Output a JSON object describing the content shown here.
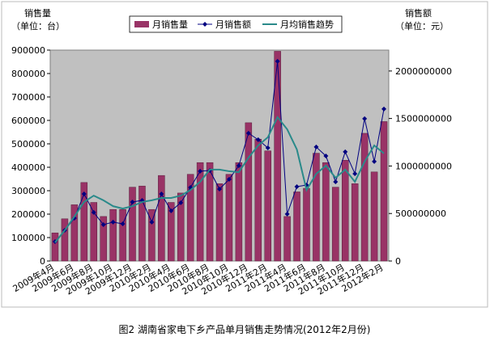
{
  "chart_data": {
    "type": "bar_line",
    "title_left": "销售量",
    "unit_left": "（单位：台）",
    "title_right": "销售额",
    "unit_right": "（单位：元）",
    "caption": "图2 湖南省家电下乡产品单月销售走势情况(2012年2月份)",
    "categories": [
      "2009年4月",
      null,
      "2009年6月",
      null,
      "2009年8月",
      null,
      "2009年10月",
      null,
      "2009年12月",
      null,
      "2010年2月",
      null,
      "2010年4月",
      null,
      "2010年6月",
      null,
      "2010年8月",
      null,
      "2010年10月",
      null,
      "2010年12月",
      null,
      "2011年2月",
      null,
      "2011年4月",
      null,
      "2011年6月",
      null,
      "2011年8月",
      null,
      "2011年10月",
      null,
      "2011年12月",
      null,
      "2012年2月"
    ],
    "series": [
      {
        "name": "月销售量",
        "kind": "bar",
        "color": "#993366",
        "values": [
          120000,
          180000,
          240000,
          335000,
          250000,
          190000,
          220000,
          220000,
          315000,
          320000,
          220000,
          365000,
          250000,
          290000,
          370000,
          420000,
          420000,
          330000,
          370000,
          420000,
          590000,
          520000,
          470000,
          895000,
          190000,
          295000,
          310000,
          460000,
          420000,
          315000,
          430000,
          330000,
          545000,
          380000,
          595000
        ]
      },
      {
        "name": "月销售额",
        "kind": "line",
        "axis": "y2",
        "color": "#000080",
        "values": [
          204000000,
          323000000,
          451000000,
          706000000,
          511000000,
          383000000,
          409000000,
          391000000,
          621000000,
          638000000,
          409000000,
          706000000,
          528000000,
          613000000,
          774000000,
          945000000,
          953000000,
          757000000,
          860000000,
          1004000000,
          1345000000,
          1277000000,
          1191000000,
          2102000000,
          494000000,
          783000000,
          800000000,
          1200000000,
          1106000000,
          834000000,
          1149000000,
          919000000,
          1498000000,
          1047000000,
          1600000000
        ]
      },
      {
        "name": "月均销售趋势",
        "kind": "line",
        "color": "#2a8a8a",
        "values": [
          79000,
          131000,
          190000,
          252000,
          279000,
          259000,
          234000,
          224000,
          234000,
          252000,
          259000,
          269000,
          269000,
          279000,
          303000,
          338000,
          390000,
          390000,
          383000,
          379000,
          441000,
          493000,
          528000,
          614000,
          562000,
          476000,
          303000,
          372000,
          407000,
          355000,
          390000,
          338000,
          424000,
          493000,
          459000
        ]
      }
    ],
    "ylim": [
      0,
      900000
    ],
    "yticks": [
      0,
      100000,
      200000,
      300000,
      400000,
      500000,
      600000,
      700000,
      800000,
      900000
    ],
    "y2lim": [
      0,
      2220000000
    ],
    "y2ticks": [
      0,
      500000000,
      1000000000,
      1500000000,
      2000000000
    ]
  }
}
